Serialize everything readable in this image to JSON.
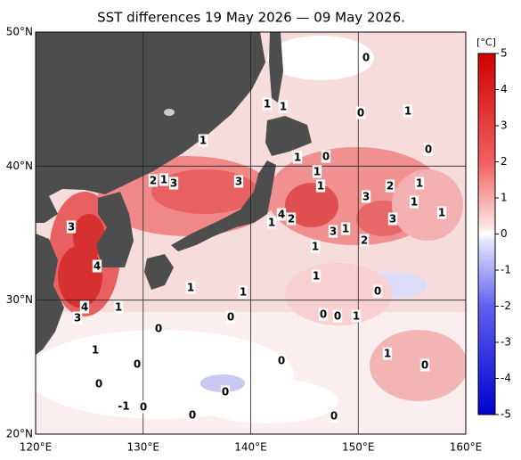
{
  "title": "SST differences 19 May 2026 — 09 May 2026.",
  "lat_labels": [
    "50°N",
    "40°N",
    "30°N",
    "20°N"
  ],
  "lon_labels": [
    "120°E",
    "130°E",
    "140°E",
    "150°E",
    "160°E"
  ],
  "colorbar": {
    "unit": "[°C]",
    "ticks": [
      5,
      4,
      3,
      2,
      1,
      0,
      -1,
      -2,
      -3,
      -4,
      -5
    ]
  },
  "contour_labels": [
    0,
    1,
    1,
    0,
    1,
    1,
    1,
    0,
    0,
    2,
    1,
    3,
    3,
    1,
    1,
    2,
    1,
    3,
    1,
    4,
    2,
    1,
    1,
    3,
    3,
    3,
    1,
    2,
    1,
    4,
    1,
    1,
    1,
    0,
    4,
    3,
    1,
    1,
    0,
    0,
    0,
    0,
    1,
    0,
    0,
    1,
    0,
    0,
    -1,
    0,
    0,
    0,
    0
  ]
}
